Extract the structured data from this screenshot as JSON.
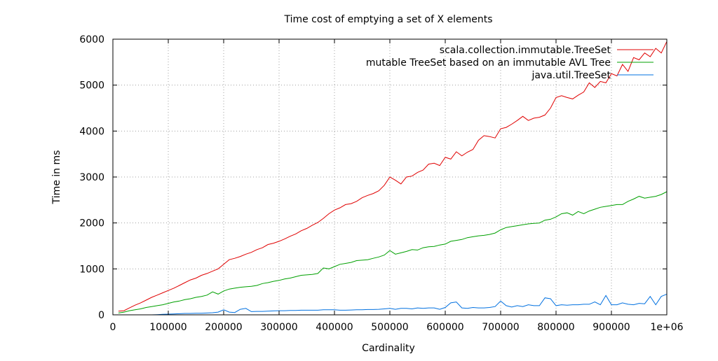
{
  "chart_data": {
    "type": "line",
    "title": "Time cost of emptying a set of X elements",
    "xlabel": "Cardinality",
    "ylabel": "Time in ms",
    "xlim": [
      0,
      1000000
    ],
    "ylim": [
      0,
      6000
    ],
    "grid": true,
    "legend_position": "top-right",
    "x_ticks": [
      {
        "value": 0,
        "label": "0"
      },
      {
        "value": 100000,
        "label": "100000"
      },
      {
        "value": 200000,
        "label": "200000"
      },
      {
        "value": 300000,
        "label": "300000"
      },
      {
        "value": 400000,
        "label": "400000"
      },
      {
        "value": 500000,
        "label": "500000"
      },
      {
        "value": 600000,
        "label": "600000"
      },
      {
        "value": 700000,
        "label": "700000"
      },
      {
        "value": 800000,
        "label": "800000"
      },
      {
        "value": 900000,
        "label": "900000"
      },
      {
        "value": 1000000,
        "label": "1e+06"
      }
    ],
    "y_ticks": [
      {
        "value": 0,
        "label": "0"
      },
      {
        "value": 1000,
        "label": "1000"
      },
      {
        "value": 2000,
        "label": "2000"
      },
      {
        "value": 3000,
        "label": "3000"
      },
      {
        "value": 4000,
        "label": "4000"
      },
      {
        "value": 5000,
        "label": "5000"
      },
      {
        "value": 6000,
        "label": "6000"
      }
    ],
    "series": [
      {
        "name": "scala.collection.immutable.TreeSet",
        "color": "#e00000",
        "x": [
          10000,
          20000,
          30000,
          40000,
          50000,
          60000,
          70000,
          80000,
          90000,
          100000,
          110000,
          120000,
          130000,
          140000,
          150000,
          160000,
          170000,
          180000,
          190000,
          200000,
          210000,
          220000,
          230000,
          240000,
          250000,
          260000,
          270000,
          280000,
          290000,
          300000,
          310000,
          320000,
          330000,
          340000,
          350000,
          360000,
          370000,
          380000,
          390000,
          400000,
          410000,
          420000,
          430000,
          440000,
          450000,
          460000,
          470000,
          480000,
          490000,
          500000,
          510000,
          520000,
          530000,
          540000,
          550000,
          560000,
          570000,
          580000,
          590000,
          600000,
          610000,
          620000,
          630000,
          640000,
          650000,
          660000,
          670000,
          680000,
          690000,
          700000,
          710000,
          720000,
          730000,
          740000,
          750000,
          760000,
          770000,
          780000,
          790000,
          800000,
          810000,
          820000,
          830000,
          840000,
          850000,
          860000,
          870000,
          880000,
          890000,
          900000,
          910000,
          920000,
          930000,
          940000,
          950000,
          960000,
          970000,
          980000,
          990000,
          1000000
        ],
        "values": [
          80,
          90,
          150,
          210,
          260,
          320,
          380,
          430,
          480,
          530,
          580,
          640,
          700,
          760,
          800,
          860,
          900,
          950,
          1000,
          1100,
          1200,
          1230,
          1270,
          1320,
          1360,
          1420,
          1460,
          1530,
          1560,
          1600,
          1650,
          1710,
          1760,
          1830,
          1880,
          1950,
          2010,
          2100,
          2200,
          2280,
          2330,
          2400,
          2420,
          2470,
          2550,
          2600,
          2640,
          2700,
          2820,
          3000,
          2930,
          2850,
          3000,
          3020,
          3100,
          3150,
          3280,
          3300,
          3250,
          3430,
          3390,
          3550,
          3460,
          3540,
          3600,
          3800,
          3900,
          3880,
          3850,
          4050,
          4080,
          4150,
          4230,
          4320,
          4230,
          4280,
          4300,
          4350,
          4500,
          4730,
          4770,
          4730,
          4700,
          4780,
          4850,
          5050,
          4950,
          5080,
          5050,
          5250,
          5200,
          5450,
          5300,
          5600,
          5550,
          5700,
          5620,
          5800,
          5700,
          5950
        ]
      },
      {
        "name": "mutable TreeSet based on an immutable AVL Tree",
        "color": "#00a000",
        "x": [
          10000,
          20000,
          30000,
          40000,
          50000,
          60000,
          70000,
          80000,
          90000,
          100000,
          110000,
          120000,
          130000,
          140000,
          150000,
          160000,
          170000,
          180000,
          190000,
          200000,
          210000,
          220000,
          230000,
          240000,
          250000,
          260000,
          270000,
          280000,
          290000,
          300000,
          310000,
          320000,
          330000,
          340000,
          350000,
          360000,
          370000,
          380000,
          390000,
          400000,
          410000,
          420000,
          430000,
          440000,
          450000,
          460000,
          470000,
          480000,
          490000,
          500000,
          510000,
          520000,
          530000,
          540000,
          550000,
          560000,
          570000,
          580000,
          590000,
          600000,
          610000,
          620000,
          630000,
          640000,
          650000,
          660000,
          670000,
          680000,
          690000,
          700000,
          710000,
          720000,
          730000,
          740000,
          750000,
          760000,
          770000,
          780000,
          790000,
          800000,
          810000,
          820000,
          830000,
          840000,
          850000,
          860000,
          870000,
          880000,
          890000,
          900000,
          910000,
          920000,
          930000,
          940000,
          950000,
          960000,
          970000,
          980000,
          990000,
          1000000
        ],
        "values": [
          40,
          60,
          90,
          110,
          130,
          160,
          180,
          200,
          220,
          250,
          280,
          300,
          330,
          350,
          380,
          400,
          430,
          500,
          450,
          520,
          560,
          580,
          600,
          610,
          620,
          640,
          680,
          700,
          730,
          750,
          780,
          800,
          830,
          860,
          870,
          880,
          900,
          1020,
          1000,
          1050,
          1100,
          1120,
          1140,
          1180,
          1190,
          1200,
          1230,
          1260,
          1300,
          1400,
          1320,
          1350,
          1380,
          1420,
          1410,
          1460,
          1480,
          1490,
          1520,
          1540,
          1600,
          1620,
          1640,
          1680,
          1700,
          1720,
          1730,
          1750,
          1780,
          1850,
          1900,
          1920,
          1940,
          1960,
          1980,
          1990,
          2000,
          2060,
          2080,
          2130,
          2200,
          2220,
          2170,
          2250,
          2200,
          2260,
          2300,
          2340,
          2360,
          2380,
          2400,
          2400,
          2470,
          2520,
          2580,
          2540,
          2560,
          2580,
          2620,
          2680
        ]
      },
      {
        "name": "java.util.TreeSet",
        "color": "#0070e0",
        "x": [
          10000,
          20000,
          30000,
          40000,
          50000,
          60000,
          70000,
          80000,
          90000,
          100000,
          110000,
          120000,
          130000,
          140000,
          150000,
          160000,
          170000,
          180000,
          190000,
          200000,
          210000,
          220000,
          230000,
          240000,
          250000,
          260000,
          270000,
          280000,
          290000,
          300000,
          310000,
          320000,
          330000,
          340000,
          350000,
          360000,
          370000,
          380000,
          390000,
          400000,
          410000,
          420000,
          430000,
          440000,
          450000,
          460000,
          470000,
          480000,
          490000,
          500000,
          510000,
          520000,
          530000,
          540000,
          550000,
          560000,
          570000,
          580000,
          590000,
          600000,
          610000,
          620000,
          630000,
          640000,
          650000,
          660000,
          670000,
          680000,
          690000,
          700000,
          710000,
          720000,
          730000,
          740000,
          750000,
          760000,
          770000,
          780000,
          790000,
          800000,
          810000,
          820000,
          830000,
          840000,
          850000,
          860000,
          870000,
          880000,
          890000,
          900000,
          910000,
          920000,
          930000,
          940000,
          950000,
          960000,
          970000,
          980000,
          990000,
          1000000
        ],
        "values": [
          0,
          0,
          0,
          0,
          0,
          0,
          0,
          5,
          10,
          15,
          20,
          25,
          30,
          30,
          35,
          35,
          40,
          45,
          60,
          110,
          60,
          50,
          120,
          140,
          70,
          75,
          75,
          80,
          85,
          90,
          90,
          95,
          95,
          100,
          100,
          100,
          100,
          110,
          110,
          110,
          100,
          100,
          105,
          110,
          110,
          115,
          115,
          120,
          130,
          140,
          120,
          140,
          140,
          130,
          150,
          140,
          150,
          150,
          120,
          160,
          260,
          280,
          150,
          140,
          160,
          150,
          150,
          160,
          180,
          300,
          200,
          170,
          200,
          180,
          220,
          200,
          200,
          370,
          350,
          200,
          220,
          210,
          220,
          220,
          230,
          230,
          280,
          220,
          420,
          220,
          220,
          260,
          230,
          220,
          250,
          240,
          400,
          220,
          400,
          450
        ]
      }
    ]
  }
}
